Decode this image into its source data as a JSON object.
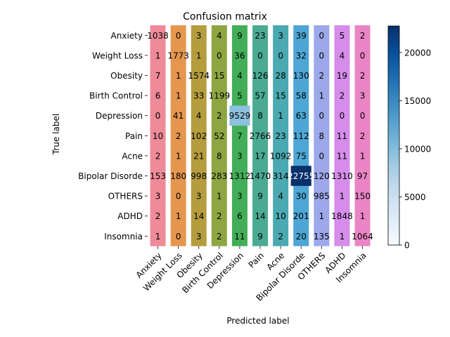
{
  "chart_data": {
    "type": "heatmap",
    "title": "Confusion matrix",
    "xlabel": "Predicted label",
    "ylabel": "True label",
    "labels": [
      "Anxiety",
      "Weight Loss",
      "Obesity",
      "Birth Control",
      "Depression",
      "Pain",
      "Acne",
      "Bipolar Disorde",
      "OTHERS",
      "ADHD",
      "Insomnia"
    ],
    "matrix": [
      [
        1038,
        0,
        3,
        4,
        9,
        23,
        3,
        39,
        0,
        5,
        2
      ],
      [
        1,
        1773,
        1,
        0,
        36,
        0,
        0,
        32,
        0,
        4,
        0
      ],
      [
        7,
        1,
        1574,
        15,
        4,
        126,
        28,
        130,
        2,
        19,
        2
      ],
      [
        6,
        1,
        33,
        1199,
        5,
        57,
        15,
        58,
        1,
        2,
        3
      ],
      [
        0,
        41,
        4,
        2,
        9529,
        8,
        1,
        63,
        0,
        0,
        0
      ],
      [
        10,
        2,
        102,
        52,
        7,
        2766,
        23,
        112,
        8,
        11,
        2
      ],
      [
        2,
        1,
        21,
        8,
        3,
        17,
        1092,
        75,
        0,
        11,
        1
      ],
      [
        153,
        180,
        998,
        283,
        1312,
        1470,
        314,
        22755,
        120,
        1310,
        97
      ],
      [
        3,
        0,
        3,
        1,
        3,
        9,
        4,
        30,
        985,
        1,
        150
      ],
      [
        2,
        1,
        14,
        2,
        6,
        14,
        10,
        201,
        1,
        1848,
        1
      ],
      [
        1,
        0,
        3,
        2,
        11,
        9,
        2,
        20,
        135,
        1,
        1064
      ]
    ],
    "bar_colors": [
      "#ef8a99",
      "#e5964f",
      "#b59d3e",
      "#8ea642",
      "#43ae58",
      "#4aab92",
      "#4aa9b1",
      "#4ea6d4",
      "#9da8ea",
      "#d58cea",
      "#ea85c5"
    ],
    "colorbar": {
      "min": 0,
      "max": 22755,
      "ticks": [
        0,
        5000,
        10000,
        15000,
        20000
      ],
      "cmap": "Blues"
    }
  }
}
